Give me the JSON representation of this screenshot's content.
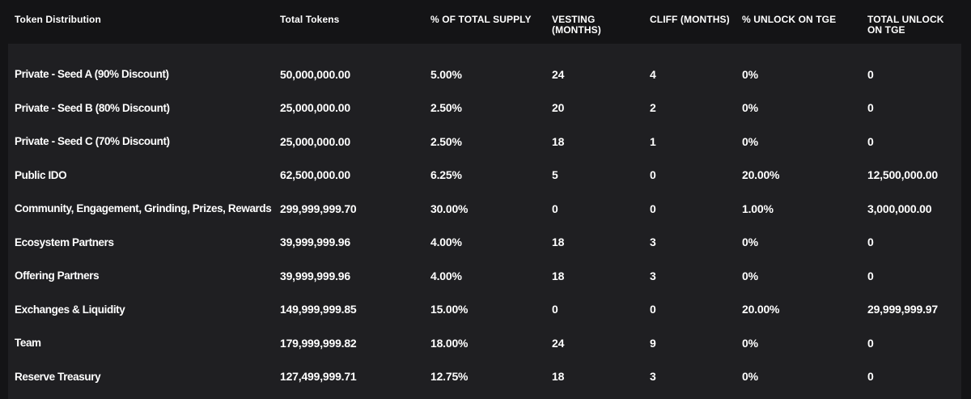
{
  "table": {
    "headers": [
      "Token Distribution",
      "Total Tokens",
      "% OF TOTAL SUPPLY",
      "VESTING (MONTHS)",
      "CLIFF (MONTHS)",
      "% UNLOCK ON TGE",
      "TOTAL UNLOCK ON TGE"
    ],
    "rows": [
      [
        "Private - Seed A (90% Discount)",
        "50,000,000.00",
        "5.00%",
        "24",
        "4",
        "0%",
        "0"
      ],
      [
        "Private - Seed B (80% Discount)",
        "25,000,000.00",
        "2.50%",
        "20",
        "2",
        "0%",
        "0"
      ],
      [
        "Private - Seed C (70% Discount)",
        "25,000,000.00",
        "2.50%",
        "18",
        "1",
        "0%",
        "0"
      ],
      [
        "Public IDO",
        "62,500,000.00",
        "6.25%",
        "5",
        "0",
        "20.00%",
        "12,500,000.00"
      ],
      [
        "Community, Engagement, Grinding, Prizes, Rewards",
        "299,999,999.70",
        "30.00%",
        "0",
        "0",
        "1.00%",
        "3,000,000.00"
      ],
      [
        "Ecosystem Partners",
        "39,999,999.96",
        "4.00%",
        "18",
        "3",
        "0%",
        "0"
      ],
      [
        "Offering Partners",
        "39,999,999.96",
        "4.00%",
        "18",
        "3",
        "0%",
        "0"
      ],
      [
        "Exchanges & Liquidity",
        "149,999,999.85",
        "15.00%",
        "0",
        "0",
        "20.00%",
        "29,999,999.97"
      ],
      [
        "Team",
        "179,999,999.82",
        "18.00%",
        "24",
        "9",
        "0%",
        "0"
      ],
      [
        "Reserve Treasury",
        "127,499,999.71",
        "12.75%",
        "18",
        "3",
        "0%",
        "0"
      ]
    ]
  },
  "colors": {
    "page_background": "#141416",
    "panel_background": "#1f1f22",
    "header_background": "#141416",
    "text": "#ffffff"
  }
}
